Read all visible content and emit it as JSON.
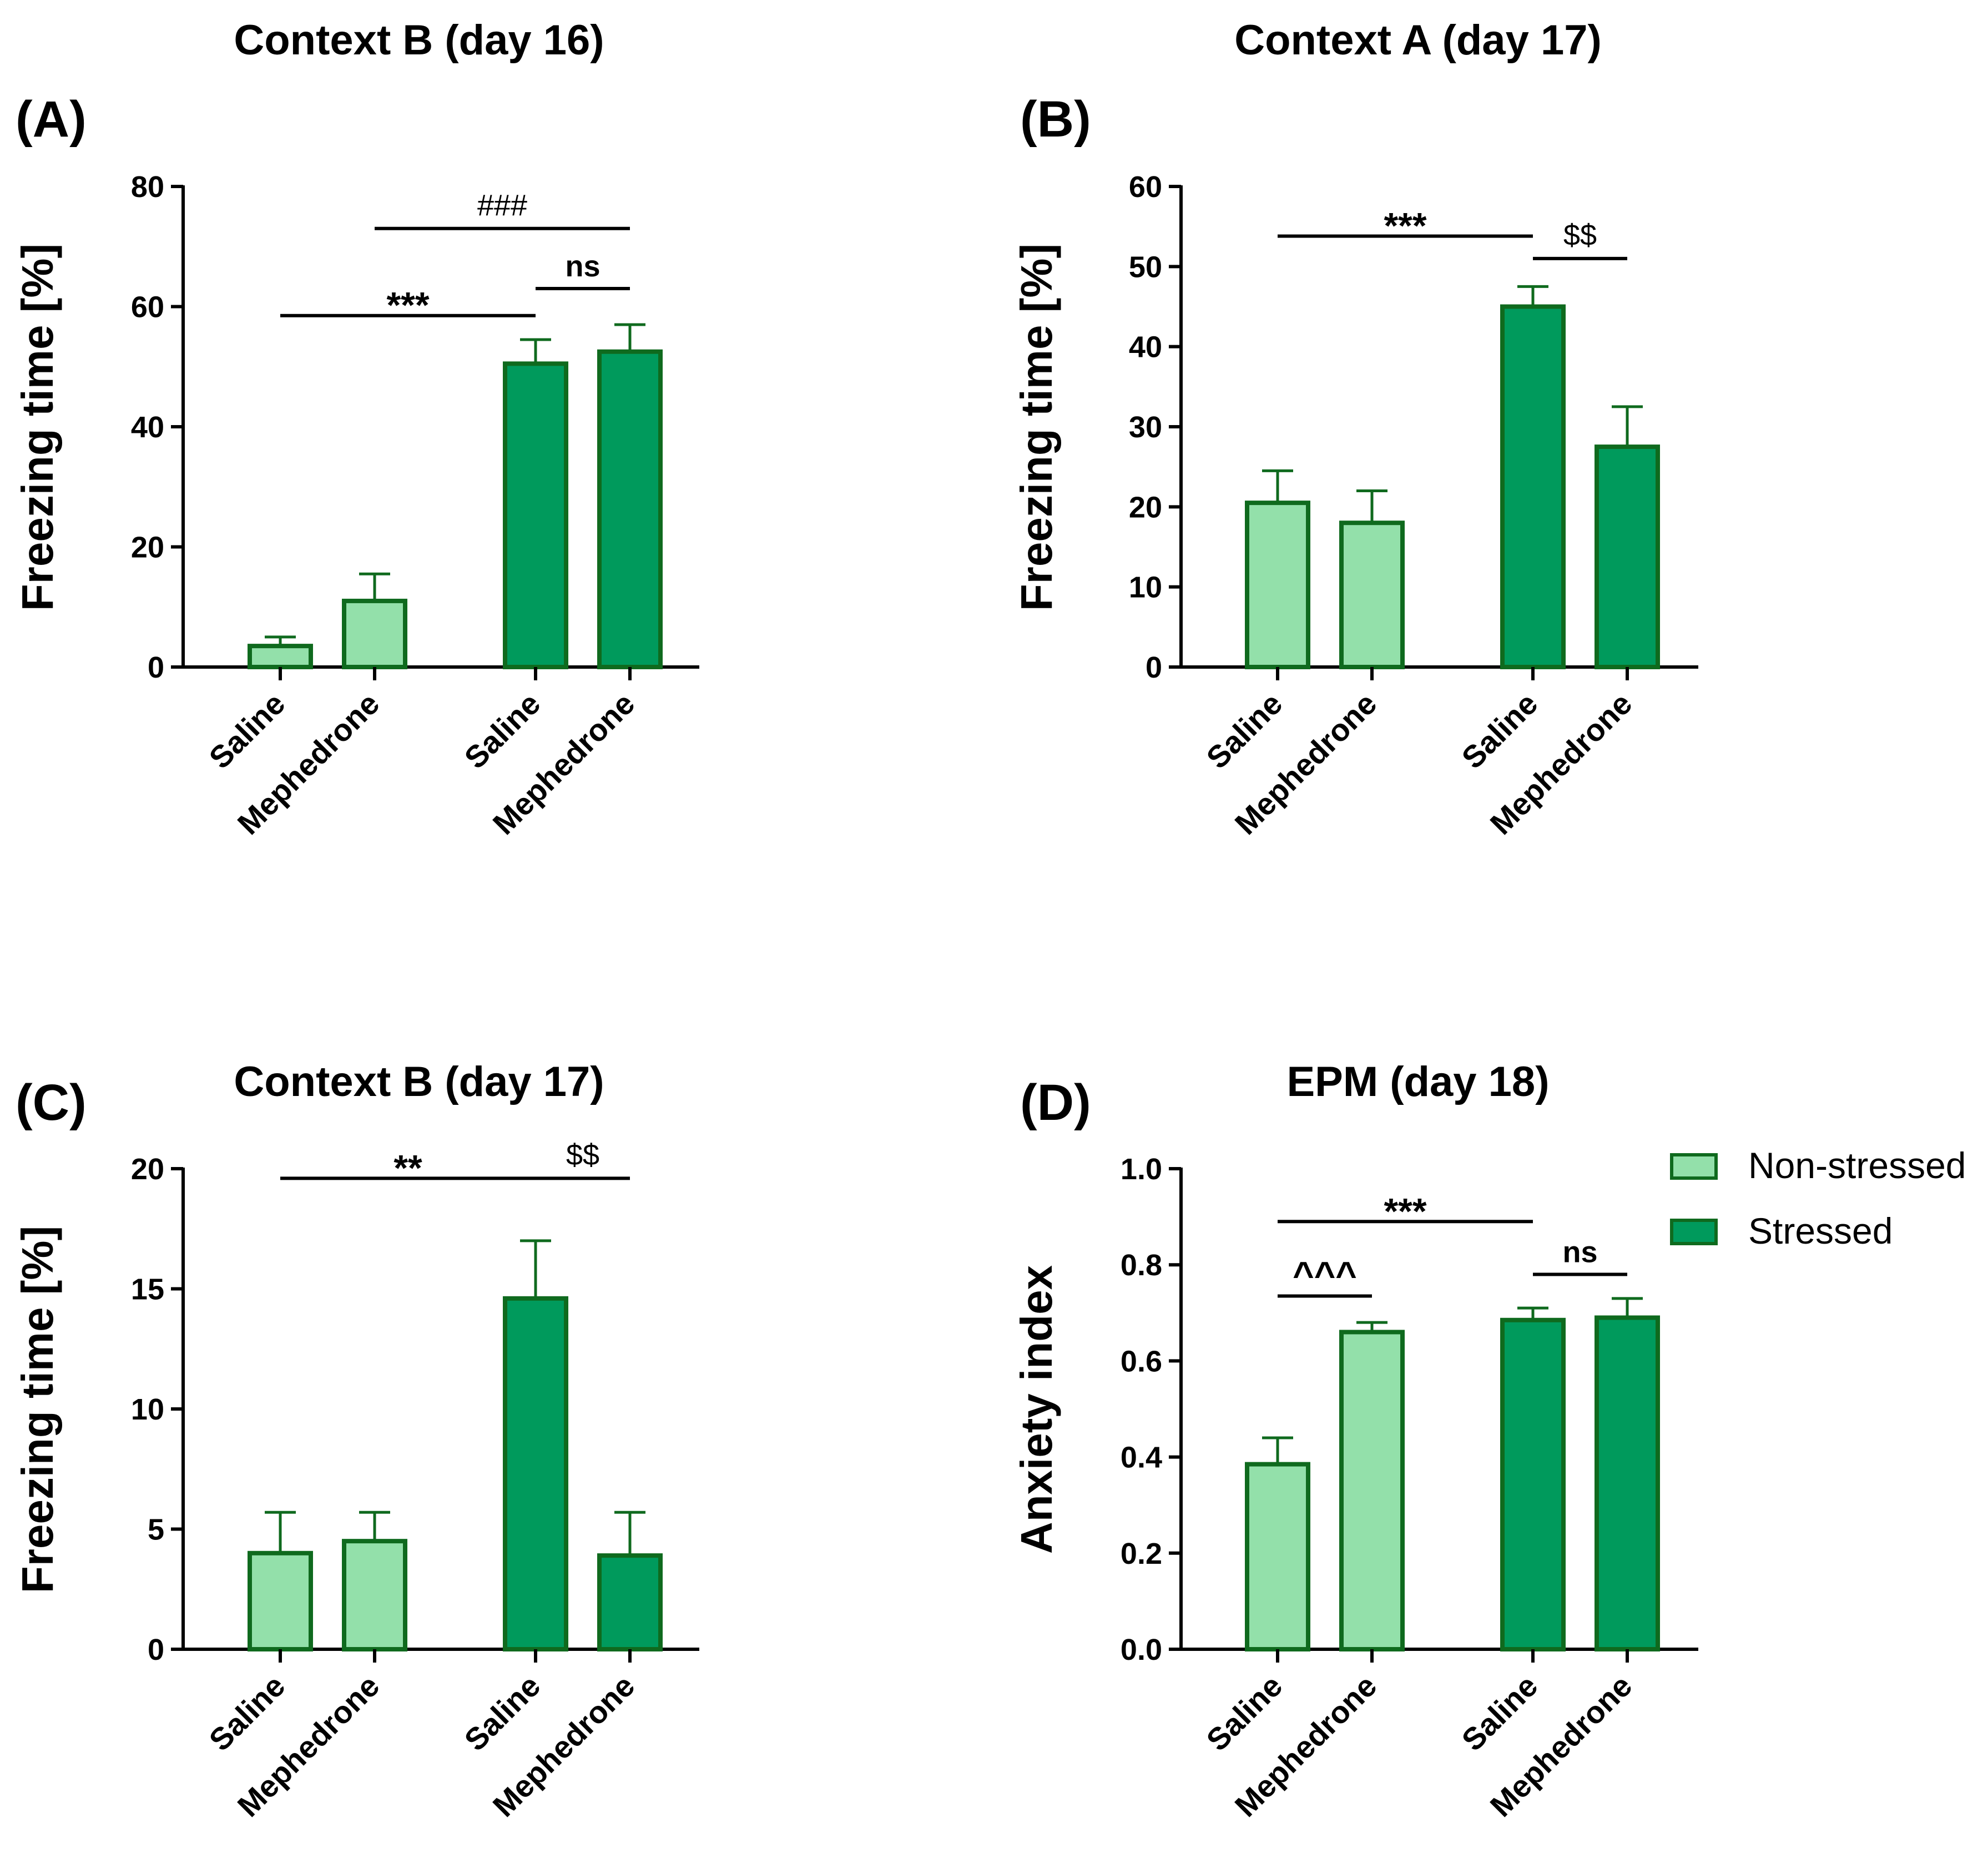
{
  "legend": {
    "items": [
      {
        "label": "Non-stressed",
        "color": "#93e0aa"
      },
      {
        "label": "Stressed",
        "color": "#009a5c"
      }
    ],
    "edge_color": "#0f6a1e"
  },
  "chart_data": [
    {
      "panel": "(A)",
      "title": "Context B (day 16)",
      "type": "bar",
      "ylabel": "Freezing time [%]",
      "ylim": [
        0,
        80
      ],
      "yticks": [
        "0",
        "20",
        "40",
        "60",
        "80"
      ],
      "categories": [
        "Saline",
        "Mephedrone",
        "Saline",
        "Mephedrone"
      ],
      "groups": [
        "Non-stressed",
        "Non-stressed",
        "Stressed",
        "Stressed"
      ],
      "values": [
        3.5,
        11,
        50.5,
        52.5
      ],
      "errors": [
        1.5,
        4.5,
        4,
        4.5
      ],
      "annotations": [
        {
          "label": "***",
          "from": 0,
          "to": 2,
          "y": 58.5
        },
        {
          "label": "ns",
          "from": 2,
          "to": 3,
          "y": 63
        },
        {
          "label": "###",
          "from": 1,
          "to": 3,
          "y": 73
        }
      ]
    },
    {
      "panel": "(B)",
      "title": "Context A (day 17)",
      "type": "bar",
      "ylabel": "Freezing time [%]",
      "ylim": [
        0,
        60
      ],
      "yticks": [
        "0",
        "10",
        "20",
        "30",
        "40",
        "50",
        "60"
      ],
      "categories": [
        "Saline",
        "Mephedrone",
        "Saline",
        "Mephedrone"
      ],
      "groups": [
        "Non-stressed",
        "Non-stressed",
        "Stressed",
        "Stressed"
      ],
      "values": [
        20.5,
        18,
        45,
        27.5
      ],
      "errors": [
        4,
        4,
        2.5,
        5
      ],
      "annotations": [
        {
          "label": "***",
          "from": 0,
          "to": 2,
          "y": 53.8
        },
        {
          "label": "$$",
          "from": 2,
          "to": 3,
          "y": 51
        }
      ]
    },
    {
      "panel": "(C)",
      "title": "Context B (day 17)",
      "type": "bar",
      "ylabel": "Freezing time [%]",
      "ylim": [
        0,
        20
      ],
      "yticks": [
        "0",
        "5",
        "10",
        "15",
        "20"
      ],
      "categories": [
        "Saline",
        "Mephedrone",
        "Saline",
        "Mephedrone"
      ],
      "groups": [
        "Non-stressed",
        "Non-stressed",
        "Stressed",
        "Stressed"
      ],
      "values": [
        4,
        4.5,
        14.6,
        3.9
      ],
      "errors": [
        1.7,
        1.2,
        2.4,
        1.8
      ],
      "annotations": [
        {
          "label": "**",
          "from": 0,
          "to": 2,
          "y": 19.6
        },
        {
          "label": "$$",
          "from": 2,
          "to": 3,
          "y": 19.6
        }
      ]
    },
    {
      "panel": "(D)",
      "title": "EPM (day 18)",
      "type": "bar",
      "ylabel": "Anxiety index",
      "ylim": [
        0,
        1
      ],
      "yticks": [
        "0.0",
        "0.2",
        "0.4",
        "0.6",
        "0.8",
        "1.0"
      ],
      "categories": [
        "Saline",
        "Mephedrone",
        "Saline",
        "Mephedrone"
      ],
      "groups": [
        "Non-stressed",
        "Non-stressed",
        "Stressed",
        "Stressed"
      ],
      "values": [
        0.385,
        0.66,
        0.685,
        0.69
      ],
      "errors": [
        0.055,
        0.02,
        0.025,
        0.04
      ],
      "annotations": [
        {
          "label": "***",
          "from": 0,
          "to": 2,
          "y": 0.89
        },
        {
          "label": "ns",
          "from": 2,
          "to": 3,
          "y": 0.78
        },
        {
          "label": "^^^",
          "from": 0,
          "to": 1,
          "y": 0.735
        }
      ]
    }
  ]
}
